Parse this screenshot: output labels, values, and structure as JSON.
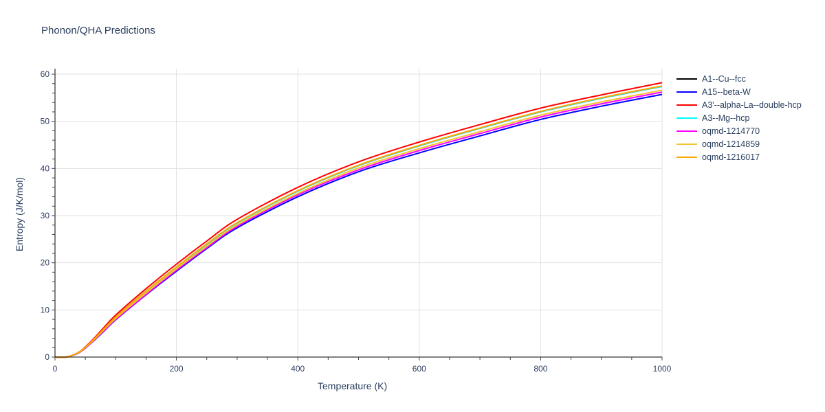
{
  "title": "Phonon/QHA Predictions",
  "xaxis": {
    "label": "Temperature (K)",
    "ticks": [
      "0",
      "200",
      "400",
      "600",
      "800",
      "1000"
    ]
  },
  "yaxis": {
    "label": "Entropy (J/K/mol)",
    "ticks": [
      "0",
      "10",
      "20",
      "30",
      "40",
      "50",
      "60"
    ]
  },
  "legend": [
    {
      "label": "A1--Cu--fcc",
      "color": "#000000"
    },
    {
      "label": "A15--beta-W",
      "color": "#0000ff"
    },
    {
      "label": "A3'--alpha-La--double-hcp",
      "color": "#ff0000"
    },
    {
      "label": "A3--Mg--hcp",
      "color": "#00ffff"
    },
    {
      "label": "oqmd-1214770",
      "color": "#ff00ff"
    },
    {
      "label": "oqmd-1214859",
      "color": "#f4c430"
    },
    {
      "label": "oqmd-1216017",
      "color": "#ffa500"
    }
  ],
  "chart_data": {
    "type": "line",
    "title": "Phonon/QHA Predictions",
    "xlabel": "Temperature (K)",
    "ylabel": "Entropy (J/K/mol)",
    "xlim": [
      0,
      1000
    ],
    "ylim": [
      0,
      61
    ],
    "grid": true,
    "legend_position": "right",
    "x": [
      0,
      20,
      40,
      60,
      80,
      100,
      150,
      200,
      250,
      300,
      400,
      500,
      600,
      700,
      800,
      900,
      1000
    ],
    "series": [
      {
        "name": "A1--Cu--fcc",
        "color": "#000000",
        "values": [
          0,
          0.05,
          1.05,
          3.2,
          5.8,
          8.4,
          13.9,
          19.0,
          23.9,
          28.4,
          35.2,
          40.6,
          44.8,
          48.5,
          52.0,
          54.9,
          57.4
        ]
      },
      {
        "name": "A15--beta-W",
        "color": "#0000ff",
        "values": [
          0,
          0.04,
          0.95,
          3.0,
          5.4,
          7.9,
          13.2,
          18.2,
          23.0,
          27.4,
          34.0,
          39.3,
          43.3,
          46.9,
          50.4,
          53.2,
          55.7
        ]
      },
      {
        "name": "A3'--alpha-La--double-hcp",
        "color": "#ff0000",
        "values": [
          0,
          0.05,
          1.1,
          3.4,
          6.2,
          8.9,
          14.5,
          19.7,
          24.6,
          29.2,
          36.0,
          41.4,
          45.6,
          49.3,
          52.8,
          55.6,
          58.2
        ]
      },
      {
        "name": "A3--Mg--hcp",
        "color": "#00ffff",
        "values": [
          0,
          0.05,
          1.05,
          3.2,
          5.8,
          8.4,
          13.9,
          19.0,
          23.9,
          28.4,
          35.2,
          40.6,
          44.8,
          48.5,
          52.0,
          54.9,
          57.4
        ]
      },
      {
        "name": "oqmd-1214770",
        "color": "#ff00ff",
        "values": [
          0,
          0.04,
          0.98,
          3.05,
          5.5,
          8.0,
          13.3,
          18.4,
          23.2,
          27.7,
          34.4,
          39.7,
          43.8,
          47.4,
          50.9,
          53.7,
          56.2
        ]
      },
      {
        "name": "oqmd-1214859",
        "color": "#f4c430",
        "values": [
          0,
          0.05,
          1.02,
          3.15,
          5.7,
          8.2,
          13.6,
          18.7,
          23.5,
          28.0,
          34.7,
          40.1,
          44.2,
          47.8,
          51.3,
          54.1,
          56.6
        ]
      },
      {
        "name": "oqmd-1216017",
        "color": "#ffa500",
        "values": [
          0,
          0.05,
          1.08,
          3.25,
          5.9,
          8.5,
          14.0,
          19.1,
          24.0,
          28.5,
          35.3,
          40.7,
          44.9,
          48.6,
          52.1,
          55.0,
          57.5
        ]
      }
    ]
  }
}
